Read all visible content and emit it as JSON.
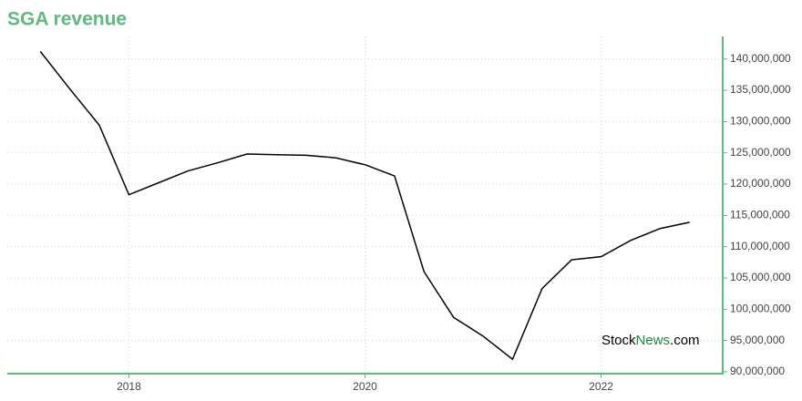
{
  "chart_data": {
    "type": "line",
    "title": "SGA revenue",
    "watermark": {
      "prefix": "Stock",
      "highlight": "News",
      "suffix": ".com"
    },
    "x": [
      2017.25,
      2017.5,
      2017.75,
      2018,
      2018.25,
      2018.5,
      2018.75,
      2019,
      2019.25,
      2019.5,
      2019.75,
      2020,
      2020.25,
      2020.5,
      2020.75,
      2021,
      2021.25,
      2021.5,
      2021.75,
      2022,
      2022.25,
      2022.5,
      2022.75
    ],
    "series": [
      {
        "color": "#000000",
        "values": [
          141200000,
          135200000,
          129400000,
          118300000,
          120200000,
          122100000,
          123400000,
          124800000,
          124700000,
          124600000,
          124200000,
          123100000,
          121300000,
          106000000,
          98700000,
          95700000,
          92000000,
          103300000,
          107900000,
          108400000,
          111000000,
          112900000,
          113900000
        ]
      }
    ],
    "xlim": [
      2016.97,
      2023.03
    ],
    "xticks": [
      2018,
      2020,
      2022
    ],
    "ylim": [
      89700000,
      143600000
    ],
    "yticks": [
      {
        "value": 90000000,
        "label": "90,000,000"
      },
      {
        "value": 95000000,
        "label": "95,000,000"
      },
      {
        "value": 100000000,
        "label": "100,000,000"
      },
      {
        "value": 105000000,
        "label": "105,000,000"
      },
      {
        "value": 110000000,
        "label": "110,000,000"
      },
      {
        "value": 115000000,
        "label": "115,000,000"
      },
      {
        "value": 120000000,
        "label": "120,000,000"
      },
      {
        "value": 125000000,
        "label": "125,000,000"
      },
      {
        "value": 130000000,
        "label": "130,000,000"
      },
      {
        "value": 135000000,
        "label": "135,000,000"
      },
      {
        "value": 140000000,
        "label": "140,000,000"
      }
    ],
    "grid": true,
    "axis_color": "#5dbb7d"
  }
}
